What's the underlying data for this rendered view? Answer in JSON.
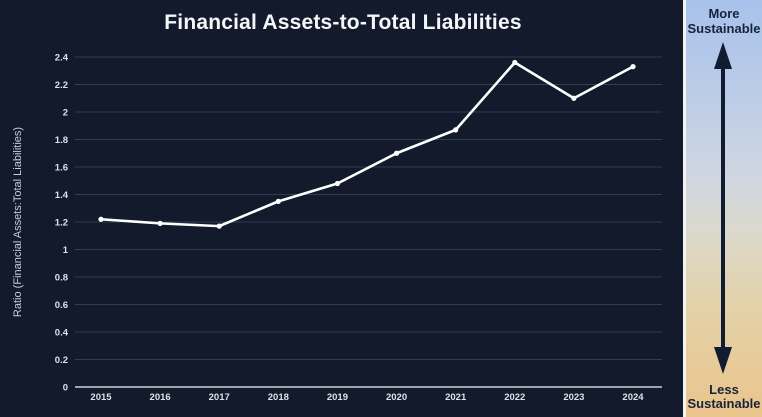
{
  "chart_data": {
    "type": "line",
    "title": "Financial Assets-to-Total Liabilities",
    "xlabel": "",
    "ylabel": "Ratio (Financial Assets:Total Liabilities)",
    "x": [
      2015,
      2016,
      2017,
      2018,
      2019,
      2020,
      2021,
      2022,
      2023,
      2024
    ],
    "values": [
      1.22,
      1.19,
      1.17,
      1.35,
      1.48,
      1.7,
      1.87,
      2.36,
      2.1,
      2.33
    ],
    "ylim": [
      0,
      2.4
    ],
    "ytick_step": 0.2,
    "grid": true,
    "legend": "none",
    "line_color": "#ffffff",
    "marker": "dot"
  },
  "colors": {
    "background": "#121a2b",
    "gridline": "#323c52",
    "axis_line": "#ccd1da",
    "tick_label": "#dde1e9",
    "title": "#f4f6f9",
    "series_line": "#ffffff",
    "sidebar_gradient_top": "#a8c2eb",
    "sidebar_gradient_bottom": "#eac58c",
    "sidebar_text": "#162339",
    "sidebar_arrow": "#121c30"
  },
  "sidebar": {
    "top_label": "More Sustainable",
    "bottom_label": "Less Sustainable",
    "arrow_icon": "double-headed-vertical-arrow"
  }
}
